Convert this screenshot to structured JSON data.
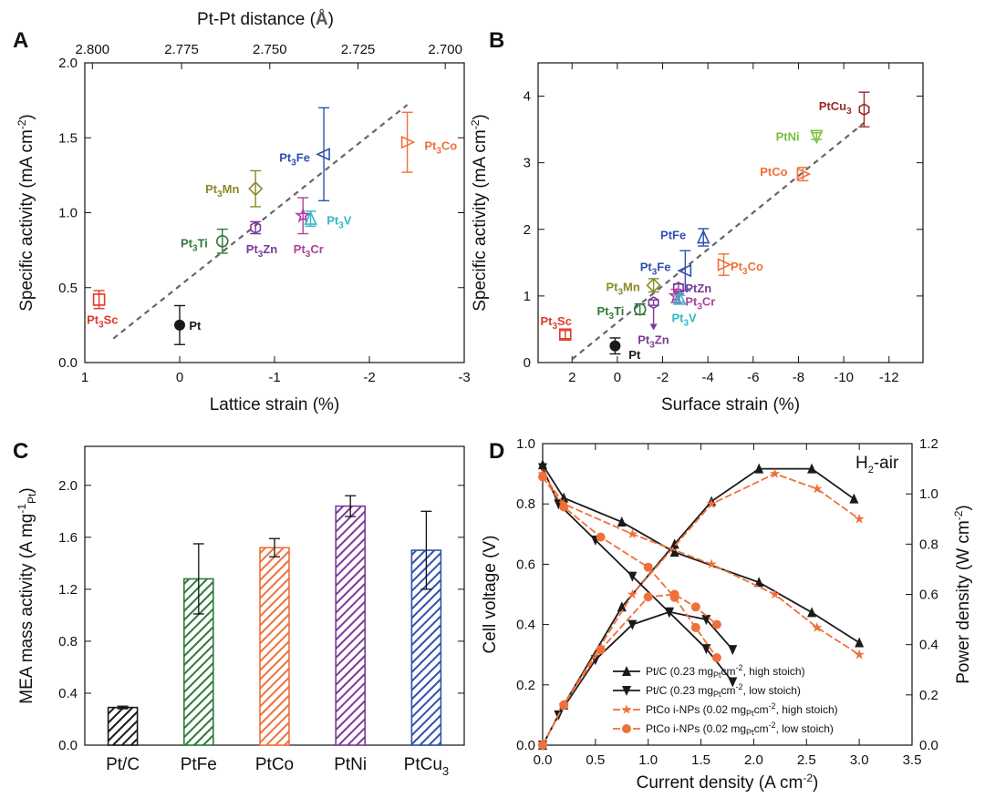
{
  "colors": {
    "black": "#1a1a1a",
    "red": "#e03a2a",
    "olive": "#8a8a2a",
    "green": "#2f7a3a",
    "purple": "#7a3a9a",
    "blue": "#3050b0",
    "magenta": "#b040a0",
    "cyan": "#30b8c8",
    "orange": "#f0703a",
    "lime": "#7ac040",
    "darkred": "#9a2a2a",
    "gray": "#666666"
  },
  "chart_data": [
    {
      "panel": "A",
      "type": "scatter",
      "xlabel": "Lattice strain (%)",
      "ylabel": "Specific activity (mA cm⁻²)",
      "ylabel_parts": [
        "Specific activity (mA cm",
        "-2",
        ")"
      ],
      "top_xlabel": "Pt-Pt distance (Å)",
      "top_xlabel_parts": [
        "Pt-Pt distance (",
        "Å",
        ")"
      ],
      "xlim": [
        1,
        -3
      ],
      "ylim": [
        0,
        2.0
      ],
      "xticks": [
        1,
        0,
        -1,
        -2,
        -3
      ],
      "xtick_labels": [
        "1",
        "0",
        "-1",
        "-2",
        "-3"
      ],
      "yticks": [
        0.0,
        0.5,
        1.0,
        1.5,
        2.0
      ],
      "ytick_labels": [
        "0.0",
        "0.5",
        "1.0",
        "1.5",
        "2.0"
      ],
      "top_ticks": [
        2.8,
        2.775,
        2.75,
        2.725,
        2.7
      ],
      "top_tick_labels": [
        "2.800",
        "2.775",
        "2.750",
        "2.725",
        "2.700"
      ],
      "top_tick_strain": [
        0.92,
        -0.02,
        -0.95,
        -1.88,
        -2.8
      ],
      "fit": [
        [
          0.7,
          0.16
        ],
        [
          -2.4,
          1.72
        ]
      ],
      "points": [
        {
          "name": "Pt3Sc",
          "label": "Pt",
          "sub": "3",
          "suffix": "Sc",
          "x": 0.85,
          "y": 0.42,
          "err": 0.06,
          "marker": "square",
          "color": "red",
          "lx": 0.98,
          "ly": 0.29
        },
        {
          "name": "Pt",
          "label": "Pt",
          "sub": "",
          "suffix": "",
          "x": 0.0,
          "y": 0.25,
          "err": 0.13,
          "marker": "dot",
          "color": "black",
          "lx": -0.1,
          "ly": 0.25
        },
        {
          "name": "Pt3Ti",
          "label": "Pt",
          "sub": "3",
          "suffix": "Ti",
          "x": -0.45,
          "y": 0.81,
          "err": 0.08,
          "marker": "circle",
          "color": "green",
          "lx": -0.01,
          "ly": 0.8
        },
        {
          "name": "Pt3Mn",
          "label": "Pt",
          "sub": "3",
          "suffix": "Mn",
          "x": -0.8,
          "y": 1.16,
          "err": 0.12,
          "marker": "diamond",
          "color": "olive",
          "lx": -0.27,
          "ly": 1.16
        },
        {
          "name": "Pt3Zn",
          "label": "Pt",
          "sub": "3",
          "suffix": "Zn",
          "x": -0.8,
          "y": 0.9,
          "err": 0.04,
          "marker": "hexagon",
          "color": "purple",
          "lx": -0.7,
          "ly": 0.76
        },
        {
          "name": "Pt3Fe",
          "label": "Pt",
          "sub": "3",
          "suffix": "Fe",
          "x": -1.52,
          "y": 1.39,
          "err": 0.31,
          "marker": "tri-left",
          "color": "blue",
          "lx": -1.05,
          "ly": 1.37
        },
        {
          "name": "Pt3Cr",
          "label": "Pt",
          "sub": "3",
          "suffix": "Cr",
          "x": -1.3,
          "y": 0.98,
          "err": 0.12,
          "marker": "star",
          "color": "magenta",
          "lx": -1.2,
          "ly": 0.76
        },
        {
          "name": "Pt3V",
          "label": "Pt",
          "sub": "3",
          "suffix": "V",
          "x": -1.38,
          "y": 0.96,
          "err": 0.05,
          "marker": "tri-up",
          "color": "cyan",
          "lx": -1.55,
          "ly": 0.95
        },
        {
          "name": "Pt3Co",
          "label": "Pt",
          "sub": "3",
          "suffix": "Co",
          "x": -2.4,
          "y": 1.47,
          "err": 0.2,
          "marker": "tri-right",
          "color": "orange",
          "lx": -2.58,
          "ly": 1.45
        }
      ]
    },
    {
      "panel": "B",
      "type": "scatter",
      "xlabel": "Surface strain (%)",
      "ylabel": "Specific activity (mA cm⁻²)",
      "ylabel_parts": [
        "Specific activity (mA cm",
        "-2",
        ")"
      ],
      "xlim": [
        3.5,
        -13.5
      ],
      "ylim": [
        0,
        4.5
      ],
      "xticks": [
        2,
        0,
        -2,
        -4,
        -6,
        -8,
        -10,
        -12
      ],
      "xtick_labels": [
        "2",
        "0",
        "-2",
        "-4",
        "-6",
        "-8",
        "-10",
        "-12"
      ],
      "yticks": [
        0,
        1,
        2,
        3,
        4
      ],
      "ytick_labels": [
        "0",
        "1",
        "2",
        "3",
        "4"
      ],
      "fit": [
        [
          2.0,
          0.05
        ],
        [
          -10.9,
          3.6
        ]
      ],
      "points": [
        {
          "name": "Pt3Sc",
          "label": "Pt",
          "sub": "3",
          "suffix": "Sc",
          "x": 2.3,
          "y": 0.42,
          "err": 0.06,
          "marker": "square",
          "color": "red",
          "lx": 3.4,
          "ly": 0.63
        },
        {
          "name": "Pt",
          "label": "Pt",
          "sub": "",
          "suffix": "",
          "x": 0.1,
          "y": 0.25,
          "err": 0.12,
          "marker": "dot",
          "color": "black",
          "lx": -0.5,
          "ly": 0.12
        },
        {
          "name": "Pt3Ti",
          "label": "Pt",
          "sub": "3",
          "suffix": "Ti",
          "x": -1.0,
          "y": 0.8,
          "err": 0.08,
          "marker": "circle",
          "color": "green",
          "lx": 0.9,
          "ly": 0.78
        },
        {
          "name": "Pt3Mn",
          "label": "Pt",
          "sub": "3",
          "suffix": "Mn",
          "x": -1.6,
          "y": 1.16,
          "err": 0.1,
          "marker": "diamond",
          "color": "olive",
          "lx": 0.5,
          "ly": 1.14
        },
        {
          "name": "Pt3Zn",
          "label": "Pt",
          "sub": "3",
          "suffix": "Zn",
          "x": -1.6,
          "y": 0.9,
          "err": 0.04,
          "marker": "hexagon",
          "color": "purple",
          "lx": -0.9,
          "ly": 0.35,
          "arrow": [
            -1.6,
            0.83,
            -1.6,
            0.5
          ]
        },
        {
          "name": "Pt3Fe",
          "label": "Pt",
          "sub": "3",
          "suffix": "Fe",
          "x": -3.0,
          "y": 1.38,
          "err": 0.3,
          "marker": "tri-left",
          "color": "blue",
          "lx": -1.0,
          "ly": 1.44
        },
        {
          "name": "PtFe",
          "label": "PtFe",
          "sub": "",
          "suffix": "",
          "x": -3.8,
          "y": 1.88,
          "err": 0.13,
          "marker": "tri-up",
          "color": "blue",
          "lx": -1.9,
          "ly": 1.92
        },
        {
          "name": "PtZn",
          "label": "PtZn",
          "sub": "",
          "suffix": "",
          "x": -2.7,
          "y": 1.12,
          "err": 0.06,
          "marker": "hexagon",
          "color": "purple",
          "lx": -3.0,
          "ly": 1.12
        },
        {
          "name": "Pt3Cr",
          "label": "Pt",
          "sub": "3",
          "suffix": "Cr",
          "x": -2.6,
          "y": 1.0,
          "err": 0.1,
          "marker": "star",
          "color": "magenta",
          "lx": -3.0,
          "ly": 0.92
        },
        {
          "name": "Pt3V",
          "label": "Pt",
          "sub": "3",
          "suffix": "V",
          "x": -2.75,
          "y": 0.96,
          "err": 0.05,
          "marker": "tri-up",
          "color": "cyan",
          "lx": -2.4,
          "ly": 0.68
        },
        {
          "name": "Pt3Co",
          "label": "Pt",
          "sub": "3",
          "suffix": "Co",
          "x": -4.7,
          "y": 1.47,
          "err": 0.16,
          "marker": "tri-right",
          "color": "orange",
          "lx": -5.0,
          "ly": 1.45
        },
        {
          "name": "PtCo",
          "label": "PtCo",
          "sub": "",
          "suffix": "",
          "x": -8.2,
          "y": 2.83,
          "err": 0.1,
          "marker": "tri-right",
          "color": "orange",
          "lx": -6.3,
          "ly": 2.87
        },
        {
          "name": "PtNi",
          "label": "PtNi",
          "sub": "",
          "suffix": "",
          "x": -8.8,
          "y": 3.4,
          "err": 0.05,
          "marker": "tri-down",
          "color": "lime",
          "lx": -7.0,
          "ly": 3.4
        },
        {
          "name": "PtCu3",
          "label": "PtCu",
          "sub": "3",
          "suffix": "",
          "x": -10.9,
          "y": 3.8,
          "err": 0.26,
          "marker": "hexagon",
          "color": "darkred",
          "lx": -8.9,
          "ly": 3.86
        }
      ]
    },
    {
      "panel": "C",
      "type": "bar",
      "ylabel": "MEA mass activity (A mg⁻¹Pt)",
      "ylabel_parts": [
        "MEA mass activity (A mg",
        "-1",
        "Pt",
        ")"
      ],
      "categories": [
        "Pt/C",
        "PtFe",
        "PtCo",
        "PtNi",
        "PtCu"
      ],
      "category_subs": [
        "",
        "",
        "",
        "",
        "3"
      ],
      "values": [
        0.29,
        1.28,
        1.52,
        1.84,
        1.5
      ],
      "errors": [
        0.01,
        0.27,
        0.07,
        0.08,
        0.3
      ],
      "colors": [
        "black",
        "green",
        "orange",
        "purple",
        "blue"
      ],
      "ylim": [
        0,
        2.3
      ],
      "yticks": [
        0.0,
        0.4,
        0.8,
        1.2,
        1.6,
        2.0
      ],
      "ytick_labels": [
        "0.0",
        "0.4",
        "0.8",
        "1.2",
        "1.6",
        "2.0"
      ]
    },
    {
      "panel": "D",
      "type": "line",
      "annotation": "H₂-air",
      "annotation_parts": [
        "H",
        "2",
        "-air"
      ],
      "xlabel": "Current density (A cm⁻²)",
      "xlabel_parts": [
        "Current density (A cm",
        "-2",
        ")"
      ],
      "ylabel": "Cell voltage (V)",
      "y2label": "Power density (W cm⁻²)",
      "y2label_parts": [
        "Power density (W cm",
        "-2",
        ")"
      ],
      "xlim": [
        0,
        3.5
      ],
      "ylim": [
        0,
        1.0
      ],
      "y2lim": [
        0,
        1.2
      ],
      "xticks": [
        0,
        0.5,
        1.0,
        1.5,
        2.0,
        2.5,
        3.0,
        3.5
      ],
      "xtick_labels": [
        "0.0",
        "0.5",
        "1.0",
        "1.5",
        "2.0",
        "2.5",
        "3.0",
        "3.5"
      ],
      "yticks": [
        0.0,
        0.2,
        0.4,
        0.6,
        0.8,
        1.0
      ],
      "ytick_labels": [
        "0.0",
        "0.2",
        "0.4",
        "0.6",
        "0.8",
        "1.0"
      ],
      "y2ticks": [
        0.0,
        0.2,
        0.4,
        0.6,
        0.8,
        1.0,
        1.2
      ],
      "y2tick_labels": [
        "0.0",
        "0.2",
        "0.4",
        "0.6",
        "0.8",
        "1.0",
        "1.2"
      ],
      "series": [
        {
          "name": "Pt/C high stoich",
          "legend": "Pt/C (0.23 mg",
          "legend_sub": "Pt",
          "legend_rest": "cm",
          "legend_sup": "-2",
          "legend_tail": ", high stoich)",
          "color": "black",
          "marker": "tri-up",
          "dash": false,
          "voltage": {
            "x": [
              0.0,
              0.2,
              0.75,
              1.25,
              2.05,
              2.55,
              3.0
            ],
            "y": [
              0.93,
              0.82,
              0.74,
              0.64,
              0.54,
              0.44,
              0.34
            ]
          },
          "power": {
            "x": [
              0.0,
              0.2,
              0.75,
              1.25,
              1.6,
              2.05,
              2.55,
              2.95
            ],
            "y": [
              0.0,
              0.16,
              0.55,
              0.8,
              0.97,
              1.1,
              1.1,
              0.98
            ]
          }
        },
        {
          "name": "Pt/C low stoich",
          "legend": "Pt/C (0.23 mg",
          "legend_sub": "Pt",
          "legend_rest": "cm",
          "legend_sup": "-2",
          "legend_tail": ", low stoich)",
          "color": "black",
          "marker": "tri-down",
          "dash": false,
          "voltage": {
            "x": [
              0.0,
              0.15,
              0.5,
              0.85,
              1.2,
              1.55,
              1.8
            ],
            "y": [
              0.92,
              0.8,
              0.68,
              0.56,
              0.44,
              0.32,
              0.21
            ]
          },
          "power": {
            "x": [
              0.0,
              0.15,
              0.5,
              0.85,
              1.2,
              1.55,
              1.8
            ],
            "y": [
              0.0,
              0.12,
              0.34,
              0.48,
              0.53,
              0.5,
              0.38
            ]
          }
        },
        {
          "name": "PtCo i-NPs high stoich",
          "legend": "PtCo i-NPs (0.02 mg",
          "legend_sub": "Pt",
          "legend_rest": "cm",
          "legend_sup": "-2",
          "legend_tail": ", high stoich)",
          "color": "orange",
          "marker": "star",
          "dash": true,
          "voltage": {
            "x": [
              0.0,
              0.2,
              0.85,
              1.6,
              2.2,
              2.6,
              3.0
            ],
            "y": [
              0.9,
              0.8,
              0.7,
              0.6,
              0.5,
              0.39,
              0.3
            ]
          },
          "power": {
            "x": [
              0.0,
              0.2,
              0.85,
              1.6,
              2.2,
              2.6,
              3.0
            ],
            "y": [
              0.0,
              0.16,
              0.6,
              0.96,
              1.08,
              1.02,
              0.9
            ]
          }
        },
        {
          "name": "PtCo i-NPs low stoich",
          "legend": "PtCo i-NPs (0.02 mg",
          "legend_sub": "Pt",
          "legend_rest": "cm",
          "legend_sup": "-2",
          "legend_tail": ", low stoich)",
          "color": "orange",
          "marker": "circle",
          "dash": true,
          "voltage": {
            "x": [
              0.0,
              0.2,
              0.55,
              1.0,
              1.25,
              1.45,
              1.65
            ],
            "y": [
              0.89,
              0.79,
              0.69,
              0.59,
              0.49,
              0.39,
              0.29
            ]
          },
          "power": {
            "x": [
              0.0,
              0.2,
              0.55,
              1.0,
              1.25,
              1.45,
              1.65
            ],
            "y": [
              0.0,
              0.16,
              0.38,
              0.59,
              0.6,
              0.55,
              0.48
            ]
          }
        }
      ]
    }
  ]
}
